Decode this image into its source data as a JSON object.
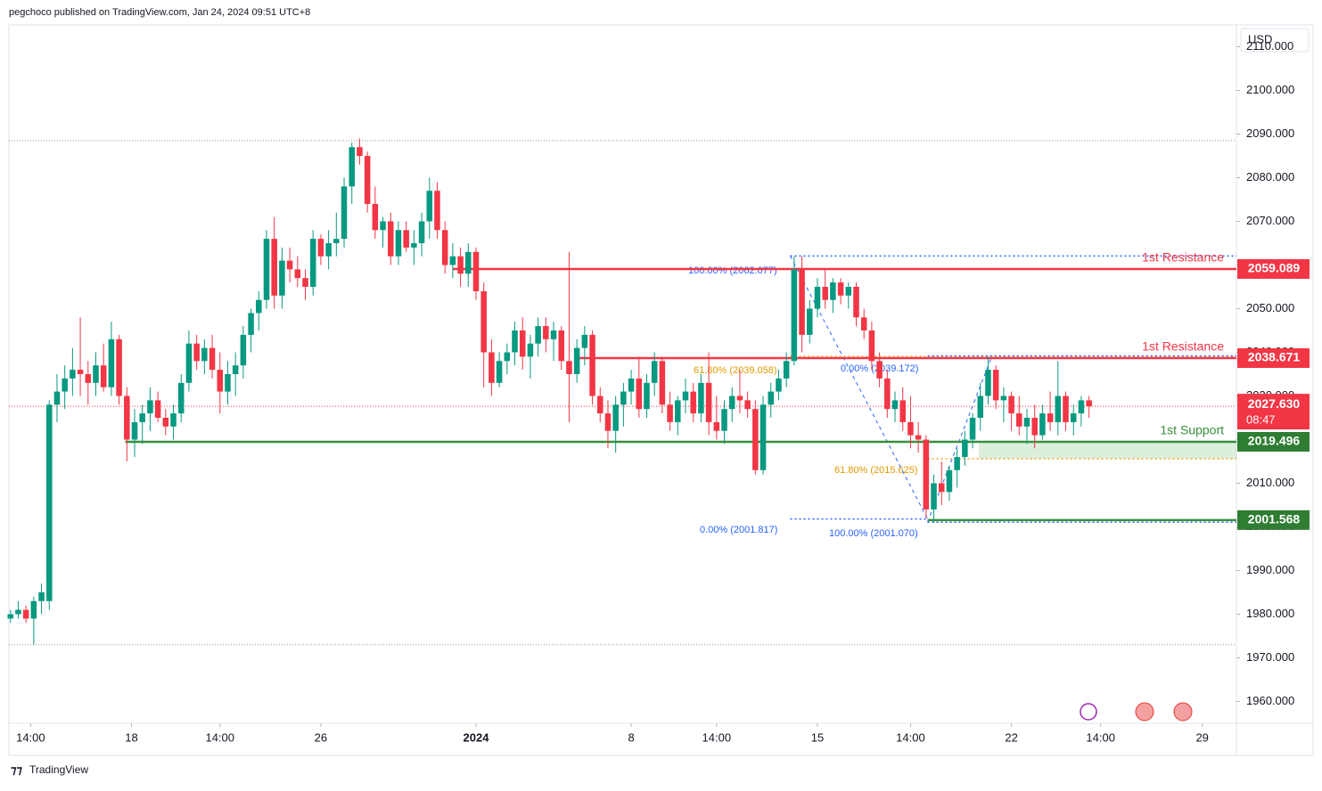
{
  "header": "pegchoco published on TradingView.com, Jan 24, 2024 09:51 UTC+8",
  "currency": "USD",
  "footer": "TradingView",
  "chart_data": {
    "type": "candlestick",
    "up_color": "#089981",
    "down_color": "#f23645",
    "xlim": [
      -0.2,
      158
    ],
    "ylim": [
      1955,
      2115
    ],
    "xticks": [
      {
        "value": 2.6,
        "label": "14:00"
      },
      {
        "value": 15.6,
        "label": "18"
      },
      {
        "value": 27,
        "label": "14:00"
      },
      {
        "value": 40,
        "label": "26"
      },
      {
        "value": 60,
        "label": "2024"
      },
      {
        "value": 80,
        "label": "8"
      },
      {
        "value": 91,
        "label": "14:00"
      },
      {
        "value": 104,
        "label": "15"
      },
      {
        "value": 116,
        "label": "14:00"
      },
      {
        "value": 129,
        "label": "22"
      },
      {
        "value": 140.5,
        "label": "14:00"
      },
      {
        "value": 153.6,
        "label": "29"
      }
    ],
    "yticks": [
      {
        "value": 1960,
        "label": "1960.000"
      },
      {
        "value": 1970,
        "label": "1970.000"
      },
      {
        "value": 1980,
        "label": "1980.000"
      },
      {
        "value": 1990,
        "label": "1990.000"
      },
      {
        "value": 2000,
        "label": "2000.000"
      },
      {
        "value": 2010,
        "label": "2010.000"
      },
      {
        "value": 2020,
        "label": "2020.000"
      },
      {
        "value": 2030,
        "label": "2030.000"
      },
      {
        "value": 2040,
        "label": "2040.000"
      },
      {
        "value": 2050,
        "label": "2050.000"
      },
      {
        "value": 2060,
        "label": "2060.000"
      },
      {
        "value": 2070,
        "label": "2070.000"
      },
      {
        "value": 2080,
        "label": "2080.000"
      },
      {
        "value": 2090,
        "label": "2090.000"
      },
      {
        "value": 2100,
        "label": "2100.000"
      },
      {
        "value": 2110,
        "label": "2110.000"
      }
    ],
    "candles": [
      [
        1979,
        1981,
        1978,
        1980
      ],
      [
        1980,
        1983,
        1979,
        1981
      ],
      [
        1981,
        1982,
        1978,
        1979
      ],
      [
        1979,
        1984,
        1973,
        1983
      ],
      [
        1983,
        1987,
        1980,
        1985
      ],
      [
        1983,
        2029,
        1981,
        2028
      ],
      [
        2028,
        2035,
        2024,
        2031
      ],
      [
        2031,
        2037,
        2027,
        2034
      ],
      [
        2034,
        2041,
        2030,
        2036
      ],
      [
        2036,
        2048,
        2030,
        2035
      ],
      [
        2035,
        2038,
        2028,
        2033
      ],
      [
        2033,
        2040,
        2030,
        2037
      ],
      [
        2037,
        2042,
        2031,
        2032
      ],
      [
        2032,
        2047,
        2030,
        2043
      ],
      [
        2043,
        2044,
        2028,
        2030
      ],
      [
        2030,
        2032,
        2015,
        2020
      ],
      [
        2020,
        2027,
        2016,
        2024
      ],
      [
        2024,
        2028,
        2019,
        2026
      ],
      [
        2026,
        2032,
        2022,
        2029
      ],
      [
        2029,
        2031,
        2024,
        2025
      ],
      [
        2025,
        2027,
        2021,
        2023
      ],
      [
        2023,
        2028,
        2020,
        2026
      ],
      [
        2026,
        2035,
        2024,
        2033
      ],
      [
        2033,
        2045,
        2031,
        2042
      ],
      [
        2042,
        2044,
        2036,
        2038
      ],
      [
        2038,
        2043,
        2035,
        2041
      ],
      [
        2041,
        2044,
        2034,
        2036
      ],
      [
        2036,
        2040,
        2026,
        2031
      ],
      [
        2031,
        2038,
        2028,
        2035
      ],
      [
        2035,
        2040,
        2030,
        2037
      ],
      [
        2037,
        2046,
        2034,
        2044
      ],
      [
        2044,
        2050,
        2040,
        2049
      ],
      [
        2049,
        2054,
        2045,
        2052
      ],
      [
        2052,
        2068,
        2050,
        2066
      ],
      [
        2066,
        2071,
        2050,
        2053
      ],
      [
        2053,
        2064,
        2050,
        2061
      ],
      [
        2061,
        2064,
        2056,
        2059
      ],
      [
        2059,
        2062,
        2055,
        2057
      ],
      [
        2057,
        2059,
        2052,
        2055
      ],
      [
        2055,
        2068,
        2053,
        2066
      ],
      [
        2066,
        2067,
        2060,
        2062
      ],
      [
        2062,
        2068,
        2059,
        2065
      ],
      [
        2065,
        2072,
        2062,
        2066
      ],
      [
        2066,
        2080,
        2064,
        2078
      ],
      [
        2078,
        2088,
        2074,
        2087
      ],
      [
        2087,
        2089,
        2083,
        2085
      ],
      [
        2085,
        2086,
        2072,
        2074
      ],
      [
        2074,
        2078,
        2066,
        2068
      ],
      [
        2068,
        2071,
        2064,
        2070
      ],
      [
        2070,
        2072,
        2060,
        2062
      ],
      [
        2062,
        2070,
        2060,
        2068
      ],
      [
        2068,
        2070,
        2063,
        2064
      ],
      [
        2064,
        2068,
        2060,
        2065
      ],
      [
        2065,
        2072,
        2062,
        2070
      ],
      [
        2070,
        2080,
        2066,
        2077
      ],
      [
        2077,
        2079,
        2066,
        2068
      ],
      [
        2068,
        2070,
        2058,
        2060
      ],
      [
        2060,
        2065,
        2057,
        2062
      ],
      [
        2062,
        2064,
        2055,
        2058
      ],
      [
        2058,
        2065,
        2055,
        2063
      ],
      [
        2063,
        2064,
        2052,
        2054
      ],
      [
        2054,
        2056,
        2032,
        2040
      ],
      [
        2040,
        2043,
        2030,
        2033
      ],
      [
        2033,
        2040,
        2032,
        2038
      ],
      [
        2038,
        2042,
        2035,
        2040
      ],
      [
        2040,
        2047,
        2037,
        2045
      ],
      [
        2045,
        2048,
        2036,
        2039
      ],
      [
        2039,
        2044,
        2034,
        2042
      ],
      [
        2042,
        2048,
        2039,
        2046
      ],
      [
        2046,
        2048,
        2040,
        2043
      ],
      [
        2043,
        2047,
        2038,
        2045
      ],
      [
        2045,
        2046,
        2036,
        2038
      ],
      [
        2038,
        2063,
        2024,
        2035
      ],
      [
        2035,
        2043,
        2033,
        2041
      ],
      [
        2041,
        2046,
        2037,
        2044
      ],
      [
        2044,
        2045,
        2028,
        2030
      ],
      [
        2030,
        2032,
        2024,
        2026
      ],
      [
        2026,
        2029,
        2018,
        2022
      ],
      [
        2022,
        2030,
        2017,
        2028
      ],
      [
        2028,
        2033,
        2023,
        2031
      ],
      [
        2031,
        2036,
        2028,
        2034
      ],
      [
        2034,
        2039,
        2025,
        2027
      ],
      [
        2027,
        2035,
        2025,
        2033
      ],
      [
        2033,
        2040,
        2030,
        2038
      ],
      [
        2038,
        2039,
        2026,
        2028
      ],
      [
        2028,
        2031,
        2022,
        2024
      ],
      [
        2024,
        2030,
        2021,
        2029
      ],
      [
        2029,
        2034,
        2026,
        2031
      ],
      [
        2031,
        2033,
        2024,
        2026
      ],
      [
        2026,
        2035,
        2024,
        2033
      ],
      [
        2033,
        2040,
        2021,
        2024
      ],
      [
        2024,
        2030,
        2020,
        2022
      ],
      [
        2022,
        2029,
        2019,
        2027
      ],
      [
        2027,
        2032,
        2024,
        2030
      ],
      [
        2030,
        2036,
        2026,
        2029
      ],
      [
        2029,
        2031,
        2025,
        2027
      ],
      [
        2027,
        2029,
        2012,
        2013
      ],
      [
        2013,
        2030,
        2012,
        2028
      ],
      [
        2028,
        2033,
        2025,
        2031
      ],
      [
        2031,
        2036,
        2029,
        2034
      ],
      [
        2034,
        2040,
        2032,
        2038
      ],
      [
        2038,
        2062,
        2037,
        2059
      ],
      [
        2059,
        2062,
        2040,
        2044
      ],
      [
        2044,
        2052,
        2042,
        2050
      ],
      [
        2050,
        2057,
        2048,
        2055
      ],
      [
        2055,
        2059,
        2050,
        2052
      ],
      [
        2052,
        2057,
        2049,
        2056
      ],
      [
        2056,
        2057,
        2051,
        2053
      ],
      [
        2053,
        2056,
        2050,
        2055
      ],
      [
        2055,
        2056,
        2046,
        2048
      ],
      [
        2048,
        2050,
        2043,
        2045
      ],
      [
        2045,
        2047,
        2036,
        2038
      ],
      [
        2038,
        2040,
        2032,
        2034
      ],
      [
        2034,
        2036,
        2025,
        2027
      ],
      [
        2027,
        2031,
        2024,
        2029
      ],
      [
        2029,
        2032,
        2022,
        2024
      ],
      [
        2024,
        2030,
        2018,
        2021
      ],
      [
        2021,
        2024,
        2017,
        2020
      ],
      [
        2020,
        2021,
        2002,
        2004
      ],
      [
        2004,
        2012,
        2001,
        2010
      ],
      [
        2010,
        2015,
        2005,
        2008
      ],
      [
        2008,
        2014,
        2006,
        2013
      ],
      [
        2013,
        2018,
        2009,
        2016
      ],
      [
        2016,
        2022,
        2014,
        2020
      ],
      [
        2020,
        2026,
        2018,
        2025
      ],
      [
        2025,
        2033,
        2022,
        2030
      ],
      [
        2030,
        2039,
        2028,
        2036
      ],
      [
        2036,
        2037,
        2027,
        2029
      ],
      [
        2029,
        2032,
        2024,
        2030
      ],
      [
        2030,
        2031,
        2022,
        2026
      ],
      [
        2026,
        2030,
        2021,
        2023
      ],
      [
        2023,
        2027,
        2019,
        2025
      ],
      [
        2025,
        2028,
        2018,
        2021
      ],
      [
        2021,
        2028,
        2020,
        2026
      ],
      [
        2026,
        2031,
        2022,
        2024
      ],
      [
        2024,
        2038,
        2021,
        2030
      ],
      [
        2030,
        2031,
        2022,
        2024
      ],
      [
        2024,
        2028,
        2021,
        2026
      ],
      [
        2026,
        2030,
        2023,
        2029
      ],
      [
        2029,
        2030,
        2025,
        2027.63
      ]
    ],
    "levels": [
      {
        "price": 2059.089,
        "price_label": "2059.089",
        "name": "1st Resistance",
        "color": "#f23645",
        "from": 57
      },
      {
        "price": 2038.671,
        "price_label": "2038.671",
        "name": "1st Resistance",
        "color": "#f23645",
        "from": 73
      },
      {
        "price": 2019.496,
        "price_label": "2019.496",
        "name": "1st Support",
        "color": "#388e3c",
        "from": 14.8
      },
      {
        "price": 2001.568,
        "price_label": "2001.568",
        "color": "#388e3c",
        "from": 118.2
      }
    ],
    "last_price": {
      "value": 2027.63,
      "label": "2027.630",
      "countdown": "08:47"
    },
    "high_low": [
      2088.5,
      1973
    ],
    "zone": [
      2015.625,
      2019.496
    ],
    "fibs": [
      {
        "label": "100.00% (2062.077)",
        "price": 2062.077,
        "color": "#2962ff",
        "from": 100.5
      },
      {
        "label": "61.80% (2039.058)",
        "price": 2039.058,
        "color": "#f5a623",
        "from": 100.5
      },
      {
        "label": "0.00% (2001.817)",
        "price": 2001.817,
        "color": "#2962ff",
        "from": 100.5
      },
      {
        "label": "0.00% (2039.172)",
        "price": 2039.172,
        "color": "#2962ff",
        "from": 118.2
      },
      {
        "label": "61.80% (2015.625)",
        "price": 2015.625,
        "color": "#f5a623",
        "from": 118.2
      },
      {
        "label": "100.00% (2001.070)",
        "price": 2001.07,
        "color": "#2962ff",
        "from": 118.2
      }
    ]
  }
}
